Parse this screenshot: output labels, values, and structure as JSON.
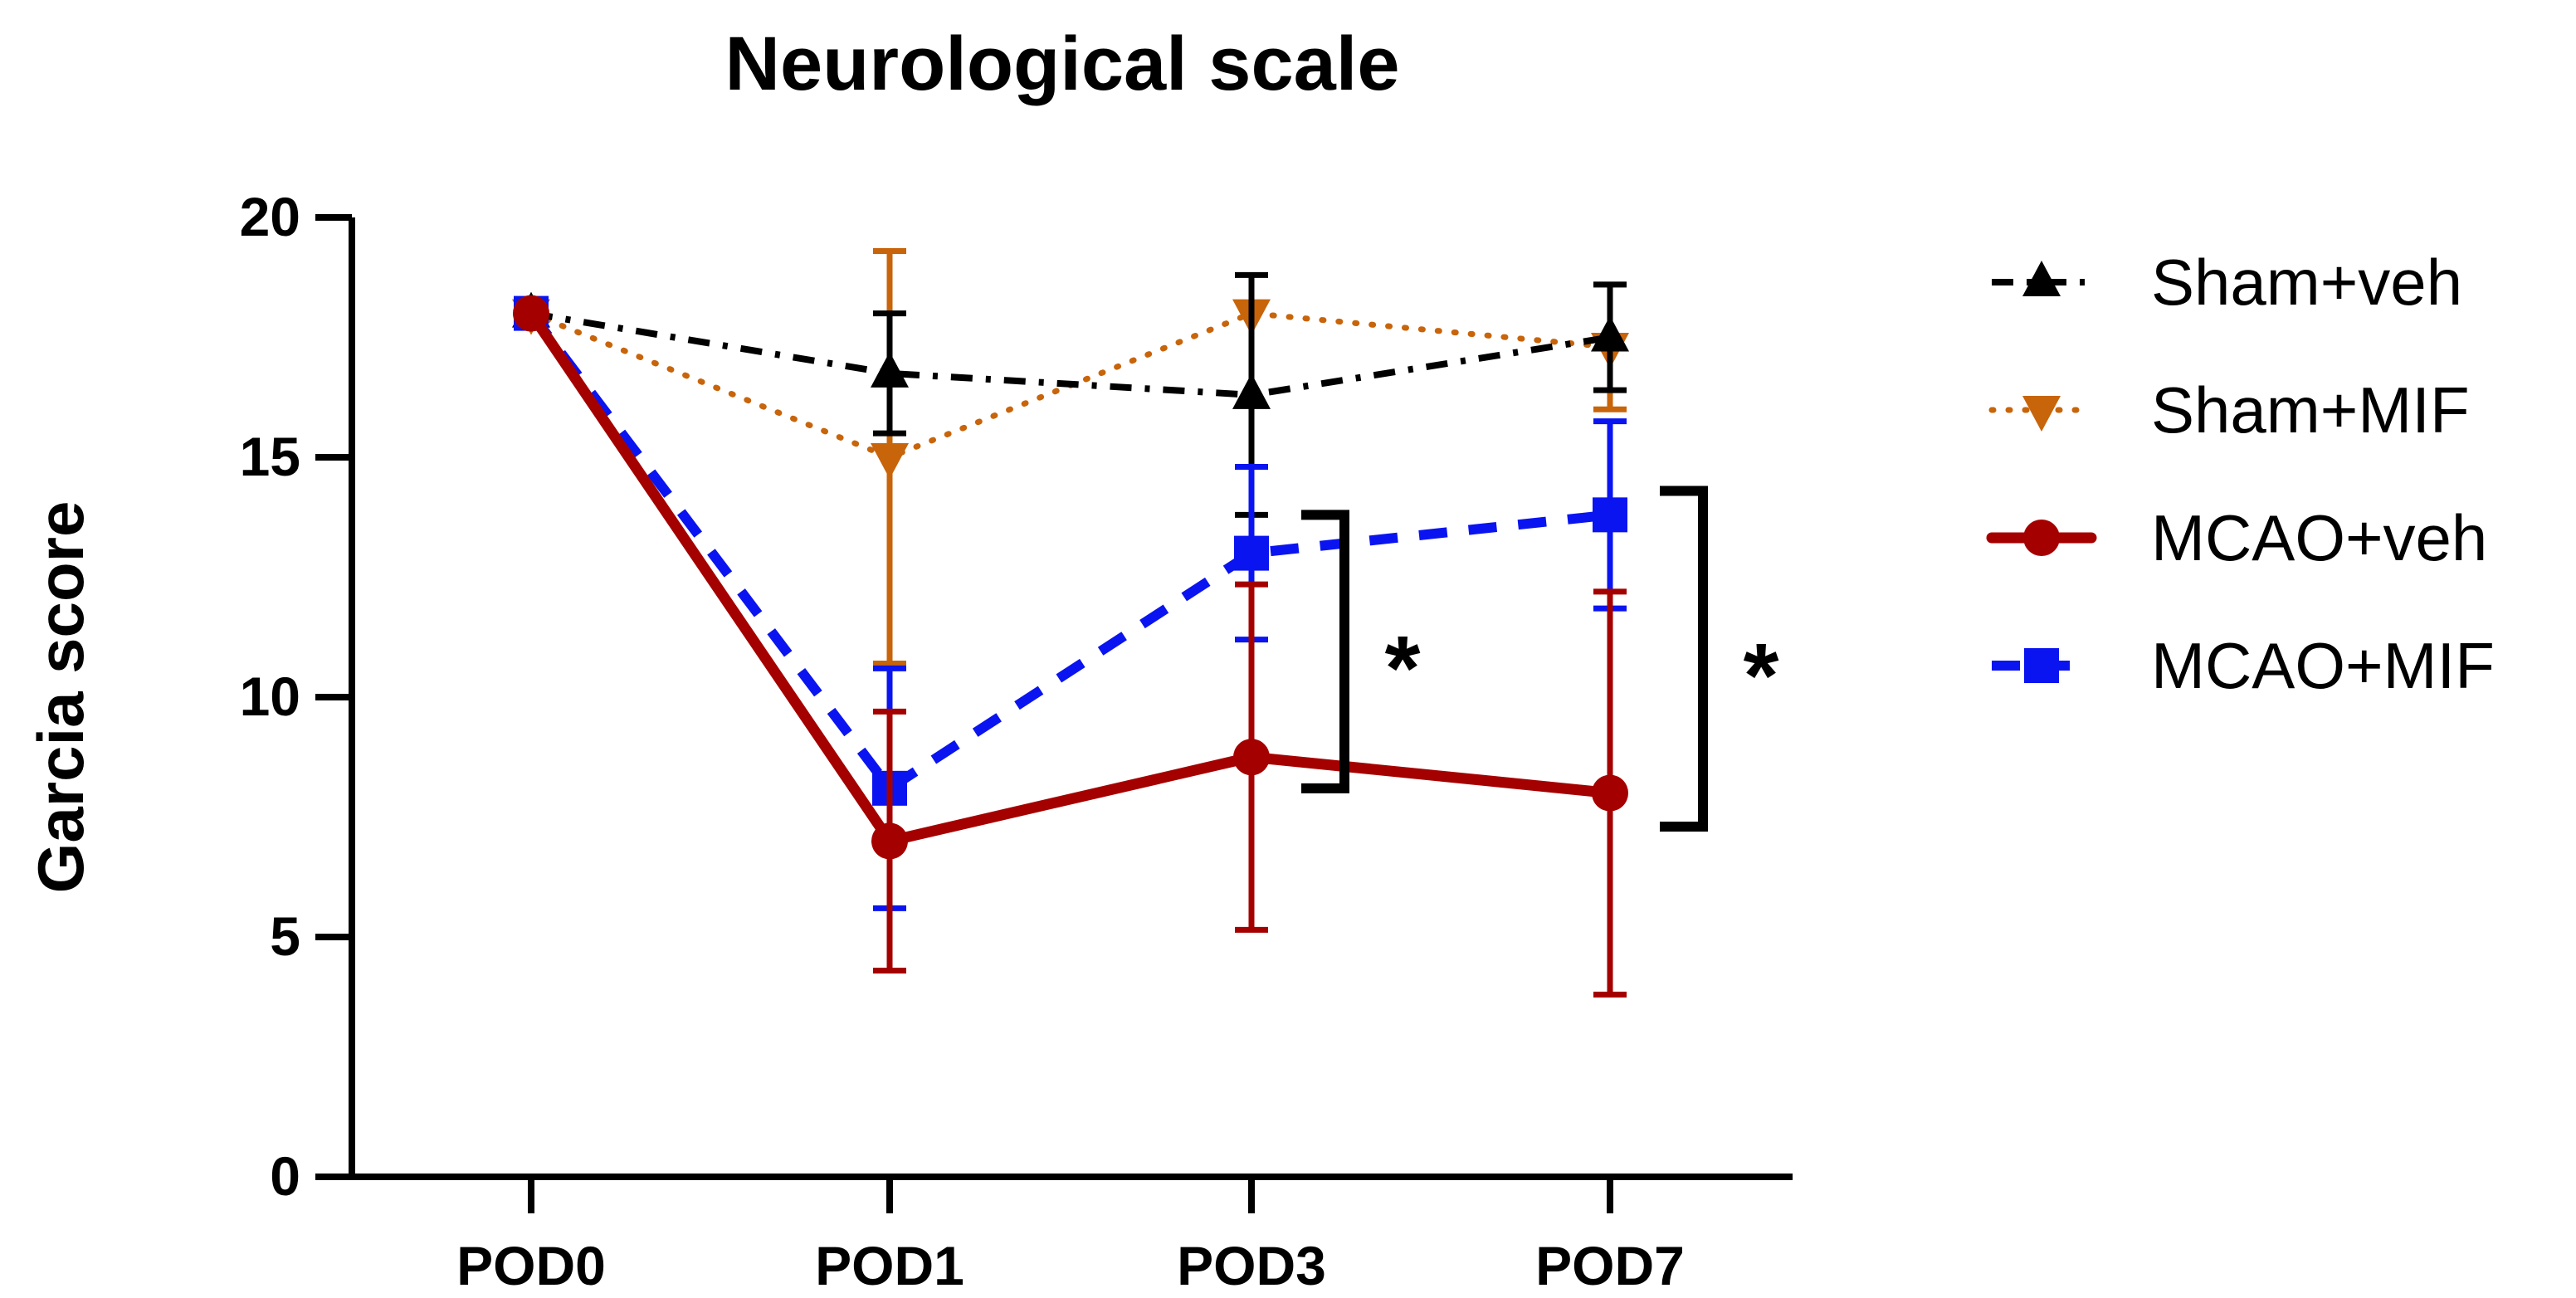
{
  "chart_data": {
    "type": "line",
    "title": "Neurological scale",
    "xlabel": "",
    "ylabel": "Garcia score",
    "categories": [
      "POD0",
      "POD1",
      "POD3",
      "POD7"
    ],
    "ylim": [
      0,
      20
    ],
    "yticks": [
      0,
      5,
      10,
      15,
      20
    ],
    "series": [
      {
        "name": "Sham+veh",
        "color": "#000000",
        "style": "dashdot",
        "marker": "triangle-up",
        "values": [
          18,
          16.75,
          16.3,
          17.5
        ],
        "errors": [
          0,
          1.25,
          2.5,
          1.1
        ]
      },
      {
        "name": "Sham+MIF",
        "color": "#c8640a",
        "style": "dotted",
        "marker": "triangle-down",
        "values": [
          18,
          15,
          18,
          17.3
        ],
        "errors": [
          0,
          4.3,
          0,
          1.3
        ]
      },
      {
        "name": "MCAO+veh",
        "color": "#a50000",
        "style": "solid",
        "marker": "circle",
        "values": [
          18,
          7,
          8.75,
          8
        ],
        "errors": [
          0,
          2.7,
          3.6,
          4.2
        ]
      },
      {
        "name": "MCAO+MIF",
        "color": "#0a14f0",
        "style": "dashed",
        "marker": "square",
        "values": [
          18,
          8.1,
          13,
          13.8
        ],
        "errors": [
          0,
          2.5,
          1.8,
          1.95
        ]
      }
    ],
    "annotations": [
      {
        "label": "*",
        "category": "POD3",
        "from": 8.1,
        "to": 13.8
      },
      {
        "label": "*",
        "category": "POD7",
        "from": 7.3,
        "to": 14.3
      }
    ],
    "legend_position": "right"
  }
}
